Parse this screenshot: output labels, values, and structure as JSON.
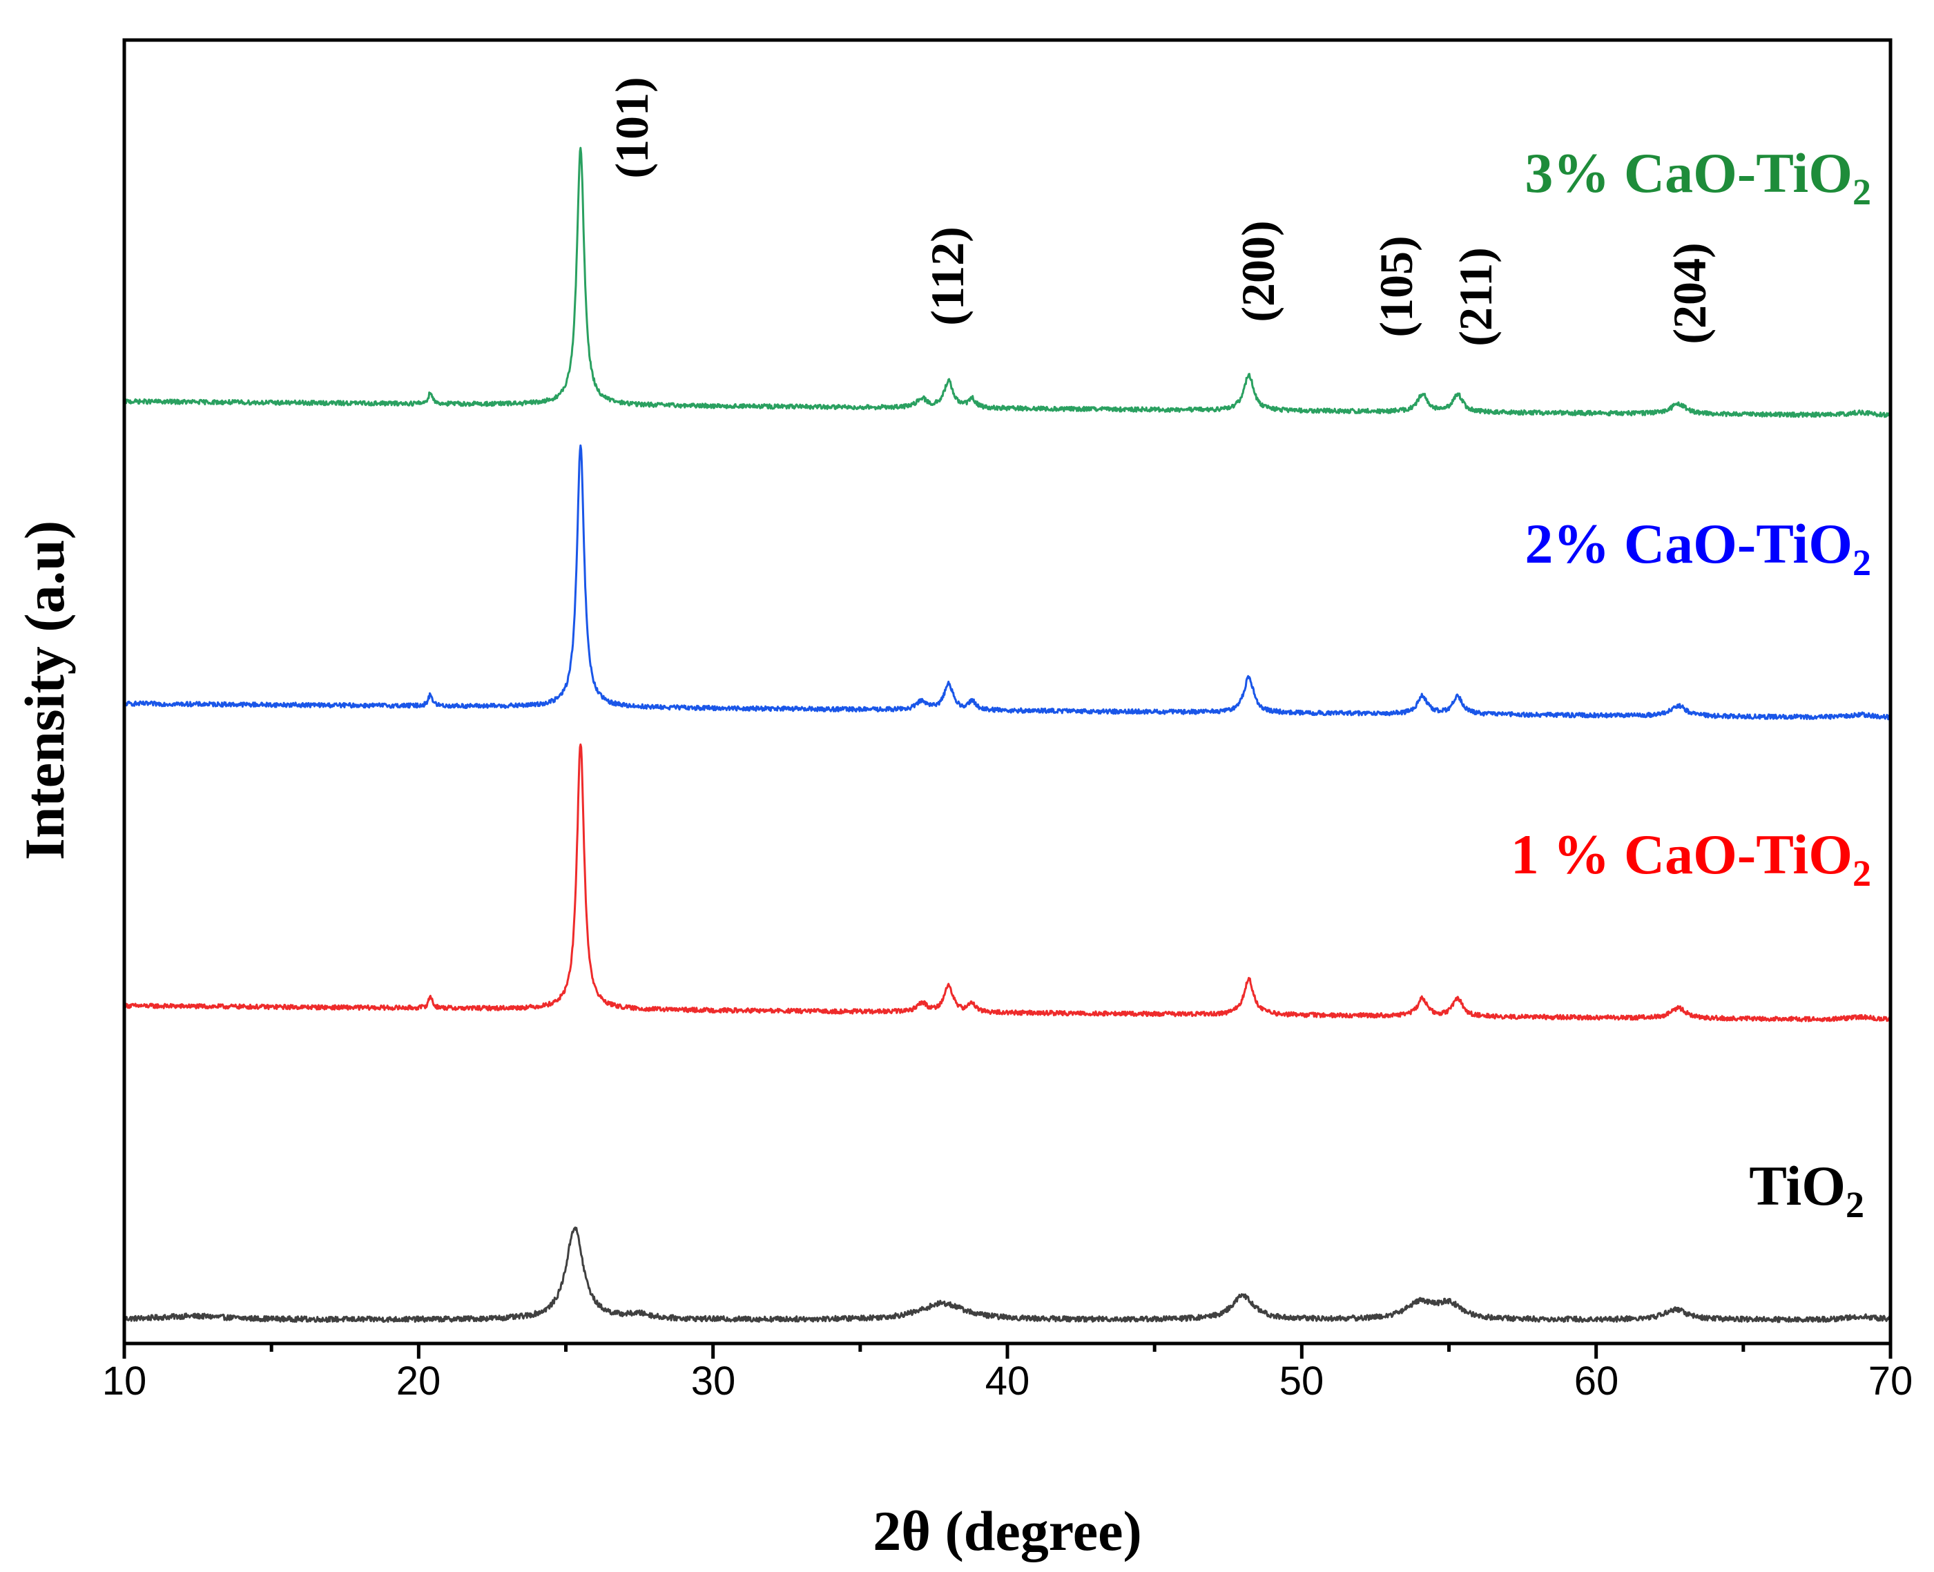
{
  "chart_data": {
    "type": "line",
    "title": "",
    "xlabel": "2θ (degree)",
    "ylabel": "Intensity (a.u)",
    "xlim": [
      10,
      70
    ],
    "x_ticks": [
      "10",
      "20",
      "30",
      "40",
      "50",
      "60",
      "70"
    ],
    "y_ticks": [],
    "grid": false,
    "series": [
      {
        "name": "TiO2",
        "label_main": "TiO",
        "label_sub": "2",
        "color": "#404040",
        "baseline": 0.8,
        "noise": 0.18,
        "peaks": [
          [
            12.3,
            0.12,
            1.5
          ],
          [
            25.3,
            3.1,
            0.35
          ],
          [
            27.5,
            0.15,
            0.5
          ],
          [
            37.8,
            0.55,
            0.9
          ],
          [
            48.0,
            0.8,
            0.45
          ],
          [
            54.0,
            0.55,
            0.55
          ],
          [
            55.0,
            0.5,
            0.5
          ],
          [
            62.7,
            0.35,
            0.45
          ],
          [
            69.0,
            0.1,
            0.6
          ]
        ]
      },
      {
        "name": "1 % CaO-TiO2",
        "label_main": "1 % CaO-TiO",
        "label_sub": "2",
        "color": "#ee2b2b",
        "baseline": 11.4,
        "noise": 0.15,
        "peaks": [
          [
            20.4,
            0.4,
            0.08
          ],
          [
            25.5,
            9.0,
            0.15
          ],
          [
            37.1,
            0.3,
            0.2
          ],
          [
            38.0,
            0.9,
            0.18
          ],
          [
            38.8,
            0.3,
            0.15
          ],
          [
            48.2,
            1.2,
            0.2
          ],
          [
            54.1,
            0.6,
            0.2
          ],
          [
            55.3,
            0.6,
            0.2
          ],
          [
            62.8,
            0.35,
            0.3
          ],
          [
            69.0,
            0.1,
            0.5
          ]
        ]
      },
      {
        "name": "2% CaO-TiO2",
        "label_main": "2% CaO-TiO",
        "label_sub": "2",
        "color": "#1a56e8",
        "baseline": 21.6,
        "noise": 0.15,
        "peaks": [
          [
            20.4,
            0.4,
            0.08
          ],
          [
            25.5,
            8.8,
            0.15
          ],
          [
            37.1,
            0.3,
            0.2
          ],
          [
            38.0,
            0.9,
            0.18
          ],
          [
            38.8,
            0.3,
            0.15
          ],
          [
            48.2,
            1.2,
            0.2
          ],
          [
            54.1,
            0.6,
            0.2
          ],
          [
            55.3,
            0.6,
            0.2
          ],
          [
            62.8,
            0.35,
            0.3
          ],
          [
            69.0,
            0.1,
            0.5
          ]
        ]
      },
      {
        "name": "3% CaO-TiO2",
        "label_main": "3% CaO-TiO",
        "label_sub": "2",
        "color": "#2aa060",
        "baseline": 31.8,
        "noise": 0.15,
        "peaks": [
          [
            20.4,
            0.4,
            0.08
          ],
          [
            25.5,
            8.7,
            0.15
          ],
          [
            37.1,
            0.3,
            0.2
          ],
          [
            38.0,
            0.9,
            0.18
          ],
          [
            38.8,
            0.3,
            0.15
          ],
          [
            48.2,
            1.2,
            0.2
          ],
          [
            54.1,
            0.6,
            0.2
          ],
          [
            55.3,
            0.6,
            0.2
          ],
          [
            62.8,
            0.35,
            0.3
          ],
          [
            69.0,
            0.1,
            0.5
          ]
        ]
      }
    ],
    "peak_annotations": [
      "(101)",
      "(112)",
      "(200)",
      "(105)",
      "(211)",
      "(204)"
    ],
    "series_labels": [
      {
        "main": "TiO",
        "sub": "2",
        "color": "#000000"
      },
      {
        "main": "1 % CaO-TiO",
        "sub": "2",
        "color": "#ff0000"
      },
      {
        "main": "2% CaO-TiO",
        "sub": "2",
        "color": "#0000ff"
      },
      {
        "main": "3% CaO-TiO",
        "sub": "2",
        "color": "#1e8c3a"
      }
    ]
  }
}
